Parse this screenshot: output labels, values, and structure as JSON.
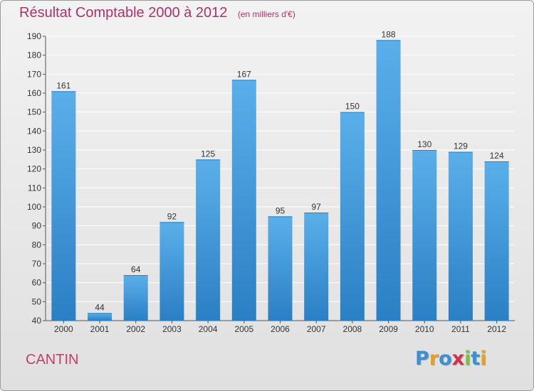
{
  "header": {
    "title": "Résultat Comptable 2000 à 2012",
    "subtitle": "(en milliers d'€)"
  },
  "footer": {
    "commune": "CANTIN",
    "logo_text": "Proxiti",
    "logo_letters": [
      {
        "char": "P",
        "color": "#3a8fd6"
      },
      {
        "char": "r",
        "color": "#e8a020"
      },
      {
        "char": "o",
        "color": "#3a8fd6"
      },
      {
        "char": "x",
        "color": "#d62f4a"
      },
      {
        "char": "i",
        "color": "#7cc142"
      },
      {
        "char": "t",
        "color": "#3a8fd6"
      },
      {
        "char": "i",
        "color": "#e8a020"
      }
    ]
  },
  "colors": {
    "bar_top": "#5aafea",
    "bar_bottom": "#2b7fc4",
    "accent": "#b0306a"
  },
  "chart_data": {
    "type": "bar",
    "categories": [
      "2000",
      "2001",
      "2002",
      "2003",
      "2004",
      "2005",
      "2006",
      "2007",
      "2008",
      "2009",
      "2010",
      "2011",
      "2012"
    ],
    "values": [
      161,
      44,
      64,
      92,
      125,
      167,
      95,
      97,
      150,
      188,
      130,
      129,
      124
    ],
    "ylim": [
      40,
      190
    ],
    "yticks": [
      40,
      50,
      60,
      70,
      80,
      90,
      100,
      110,
      120,
      130,
      140,
      150,
      160,
      170,
      180,
      190
    ],
    "grid": true,
    "data_labels": true
  }
}
